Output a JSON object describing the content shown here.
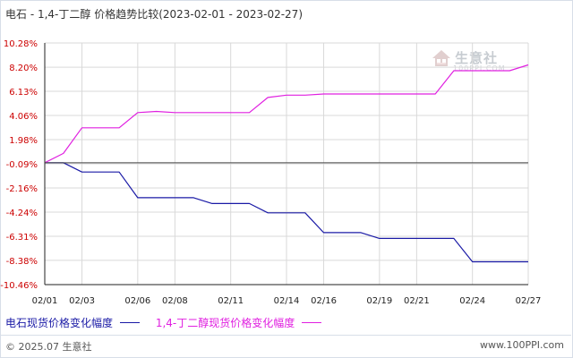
{
  "header": {
    "title": "电石 - 1,4-丁二醇  价格趋势比较",
    "date_range": "(2023-02-01 - 2023-02-27)"
  },
  "watermark": {
    "name": "生意社",
    "url": "100PPI.COM"
  },
  "footer": {
    "copyright": "© 2025.07 生意社",
    "site": "www.100PPI.com"
  },
  "colors": {
    "series1": "#1a1aa6",
    "series2": "#e020e0",
    "axis": "#222222",
    "grid": "#d9d9d9"
  },
  "chart_data": {
    "type": "line",
    "title": "电石 - 1,4-丁二醇  价格趋势比较",
    "subtitle": "(2023-02-01 - 2023-02-27)",
    "xlabel": "",
    "ylabel": "",
    "ylim": [
      -10.46,
      10.28
    ],
    "yticks": [
      "10.28%",
      "8.20%",
      "6.13%",
      "4.06%",
      "1.98%",
      "-0.09%",
      "-2.16%",
      "-4.24%",
      "-6.31%",
      "-8.38%",
      "-10.46%"
    ],
    "ytick_values": [
      10.28,
      8.2,
      6.13,
      4.06,
      1.98,
      -0.09,
      -2.16,
      -4.24,
      -6.31,
      -8.38,
      -10.46
    ],
    "xticks": [
      "02/01",
      "02/03",
      "02/06",
      "02/08",
      "02/11",
      "02/14",
      "02/16",
      "02/19",
      "02/21",
      "02/24",
      "02/27"
    ],
    "x": [
      "02/01",
      "02/02",
      "02/03",
      "02/04",
      "02/05",
      "02/06",
      "02/07",
      "02/08",
      "02/09",
      "02/10",
      "02/11",
      "02/12",
      "02/13",
      "02/14",
      "02/15",
      "02/16",
      "02/17",
      "02/18",
      "02/19",
      "02/20",
      "02/21",
      "02/22",
      "02/23",
      "02/24",
      "02/25",
      "02/26",
      "02/27"
    ],
    "grid": true,
    "legend_position": "bottom",
    "series": [
      {
        "name": "电石现货价格变化幅度",
        "color": "#1a1aa6",
        "values": [
          0,
          0,
          -0.8,
          -0.8,
          -0.8,
          -3.0,
          -3.0,
          -3.0,
          -3.0,
          -3.5,
          -3.5,
          -3.5,
          -4.3,
          -4.3,
          -4.3,
          -6.0,
          -6.0,
          -6.0,
          -6.5,
          -6.5,
          -6.5,
          -6.5,
          -6.5,
          -8.5,
          -8.5,
          -8.5,
          -8.5
        ]
      },
      {
        "name": "1,4-丁二醇现货价格变化幅度",
        "color": "#e020e0",
        "values": [
          0,
          0.8,
          3.0,
          3.0,
          3.0,
          4.3,
          4.4,
          4.3,
          4.3,
          4.3,
          4.3,
          4.3,
          5.6,
          5.8,
          5.8,
          5.9,
          5.9,
          5.9,
          5.9,
          5.9,
          5.9,
          5.9,
          7.9,
          7.9,
          7.9,
          7.9,
          8.4
        ]
      }
    ]
  }
}
